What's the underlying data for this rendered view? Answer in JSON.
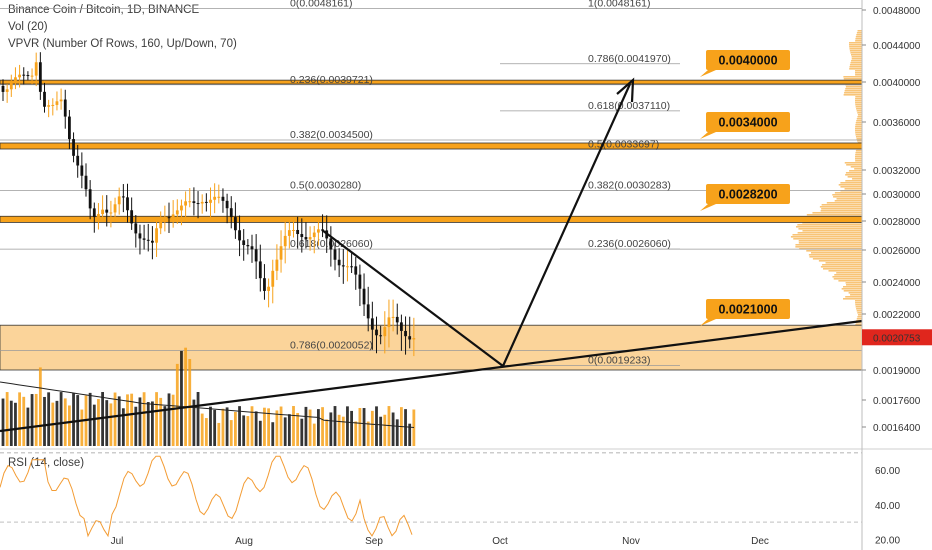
{
  "header": {
    "symbol": "Binance Coin / Bitcoin, 1D, BINANCE",
    "vol": "Vol (20)",
    "vpvr": "VPVR (Number Of Rows, 160, Up/Down, 70)"
  },
  "rsi": {
    "label": "RSI (14, close)",
    "ticks": [
      "60.00",
      "40.00",
      "20.00"
    ],
    "tick_values": [
      60,
      40,
      20
    ]
  },
  "colors": {
    "bull": "#f7a21b",
    "bear": "#111111",
    "zone": "#fbd49a",
    "zone_line": "#333333",
    "price_tag": "#e0261d",
    "tag_fill": "#f7a21b"
  },
  "chart_data": {
    "type": "candlestick",
    "y_ticks": [
      0.0048,
      0.0044,
      0.004,
      0.0036,
      0.0032,
      0.003,
      0.0028,
      0.0026,
      0.0024,
      0.0022,
      0.0019,
      0.00176,
      0.00164
    ],
    "y_tick_labels": [
      "0.0048000",
      "0.0044000",
      "0.0040000",
      "0.0036000",
      "0.0032000",
      "0.0030000",
      "0.0028000",
      "0.0026000",
      "0.0024000",
      "0.0022000",
      "0.0019000",
      "0.0017600",
      "0.0016400"
    ],
    "x_labels": [
      "Jul",
      "Aug",
      "Sep",
      "Oct",
      "Nov",
      "Dec"
    ],
    "last_price": "0.0020753",
    "support_resistance": [
      {
        "label": "0.0040000",
        "value": 0.004
      },
      {
        "label": "0.0034000",
        "value": 0.0034
      },
      {
        "label": "0.0028200",
        "value": 0.00282
      },
      {
        "label": "0.0021000",
        "value": 0.0021
      }
    ],
    "fib_left": [
      {
        "label": "0(0.0048161)",
        "value": 0.0048161
      },
      {
        "label": "0.236(0.0039721)",
        "value": 0.0039721
      },
      {
        "label": "0.382(0.0034500)",
        "value": 0.00345
      },
      {
        "label": "0.5(0.0030280)",
        "value": 0.003028
      },
      {
        "label": "0.618(0.0026060)",
        "value": 0.002606
      },
      {
        "label": "0.786(0.0020052)",
        "value": 0.0020052
      }
    ],
    "fib_right": [
      {
        "label": "1(0.0048161)",
        "value": 0.0048161
      },
      {
        "label": "0.786(0.0041970)",
        "value": 0.004197
      },
      {
        "label": "0.618(0.0037110)",
        "value": 0.003711
      },
      {
        "label": "0.5(0.0033697)",
        "value": 0.0033697
      },
      {
        "label": "0.382(0.0030283)",
        "value": 0.0030283
      },
      {
        "label": "0.236(0.0026060)",
        "value": 0.002606
      },
      {
        "label": "0(0.0019233)",
        "value": 0.0019233
      }
    ]
  }
}
